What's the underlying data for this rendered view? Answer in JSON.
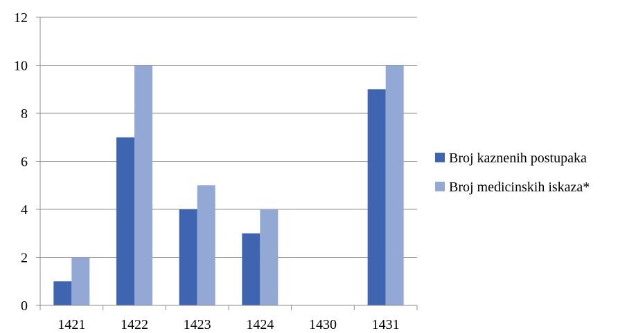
{
  "chart_data": {
    "type": "bar",
    "title": "",
    "xlabel": "",
    "ylabel": "",
    "categories": [
      "1421",
      "1422",
      "1423",
      "1424",
      "1430",
      "1431"
    ],
    "series": [
      {
        "name": "Broj kaznenih postupaka",
        "values": [
          1,
          7,
          4,
          3,
          0,
          9
        ],
        "color": "#3f65b0"
      },
      {
        "name": "Broj medicinskih iskaza*",
        "values": [
          2,
          10,
          5,
          4,
          0,
          10
        ],
        "color": "#94a8d6"
      }
    ],
    "ylim": [
      0,
      12
    ],
    "yticks": [
      0,
      2,
      4,
      6,
      8,
      10,
      12
    ],
    "grid": true,
    "legend_position": "right"
  }
}
